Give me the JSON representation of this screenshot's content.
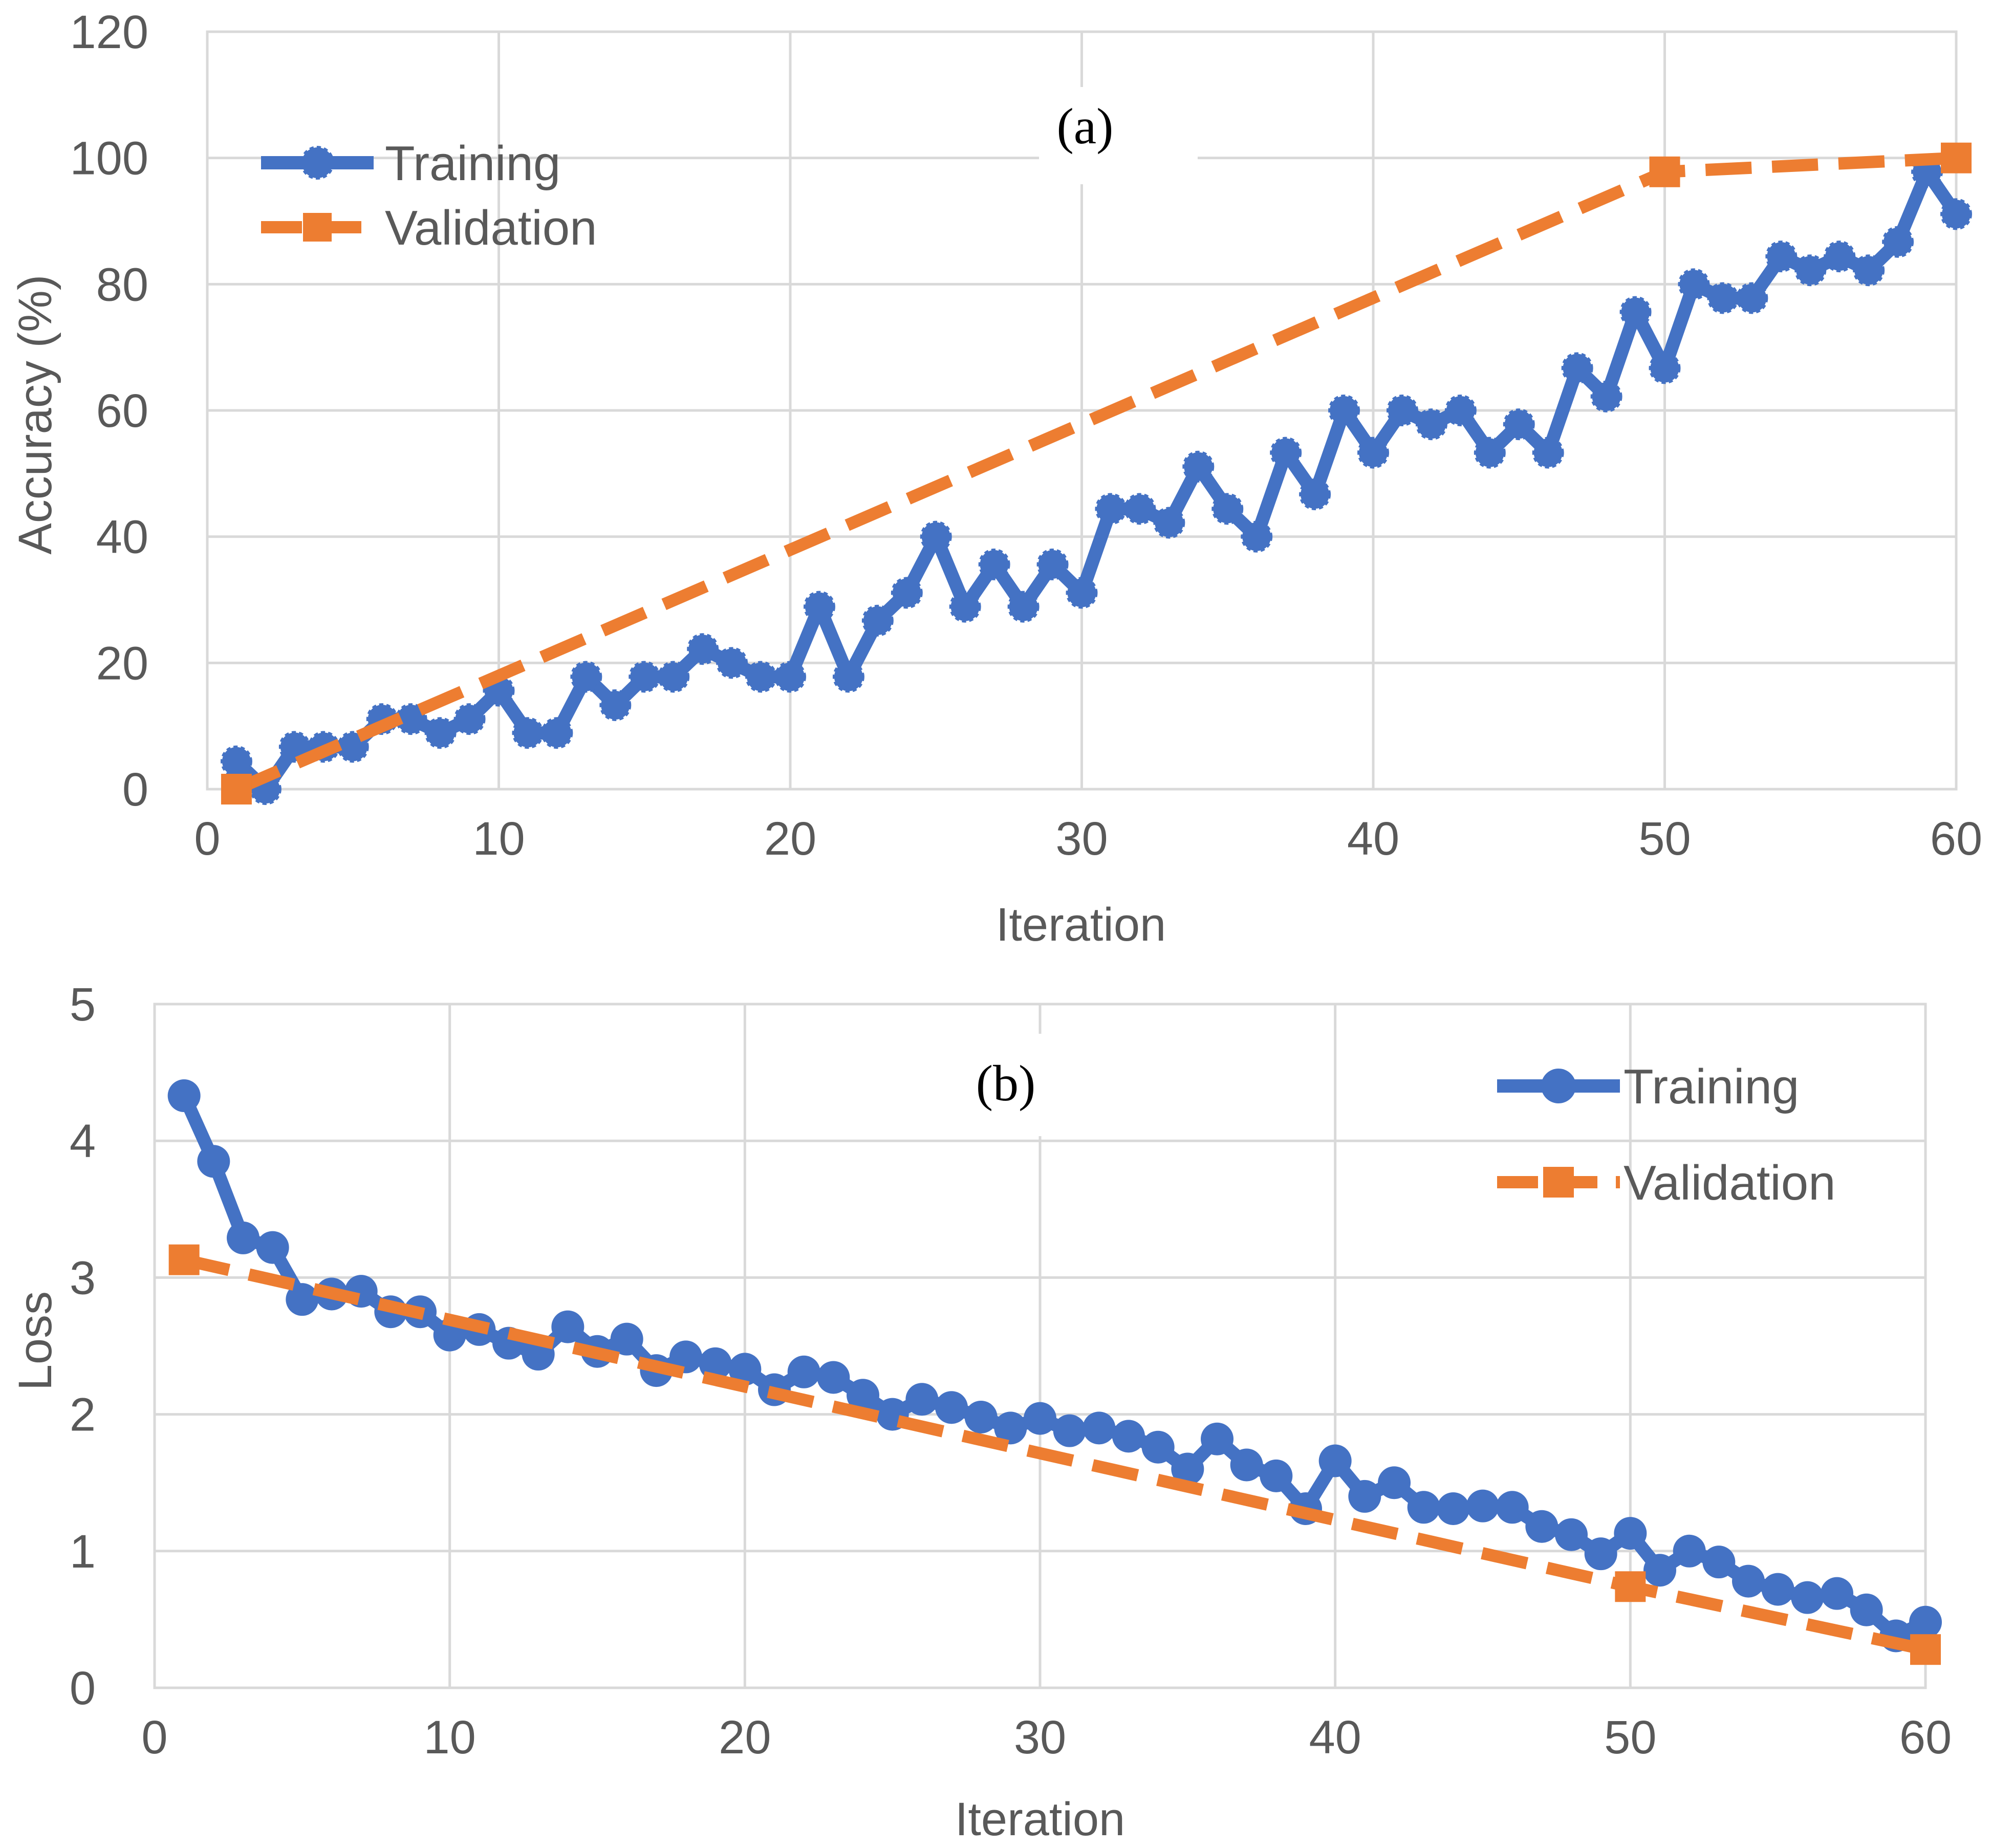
{
  "colors": {
    "training": "#4472C4",
    "validation": "#ED7D31",
    "grid": "#D9D9D9",
    "text": "#595959"
  },
  "chart_data": [
    {
      "type": "line",
      "panel_label": "(a)",
      "title": "",
      "xlabel": "Iteration",
      "ylabel": "Accuracy (%)",
      "xlim": [
        0,
        60
      ],
      "ylim": [
        0,
        120
      ],
      "xticks": [
        "0",
        "10",
        "20",
        "30",
        "40",
        "50",
        "60"
      ],
      "yticks": [
        "0",
        "20",
        "40",
        "60",
        "80",
        "100",
        "120"
      ],
      "grid": true,
      "legend_position": "top-left",
      "series": [
        {
          "name": "Training",
          "style": "solid-line-circle-markers",
          "x": [
            1,
            2,
            3,
            4,
            5,
            6,
            7,
            8,
            9,
            10,
            11,
            12,
            13,
            14,
            15,
            16,
            17,
            18,
            19,
            20,
            21,
            22,
            23,
            24,
            25,
            26,
            27,
            28,
            29,
            30,
            31,
            32,
            33,
            34,
            35,
            36,
            37,
            38,
            39,
            40,
            41,
            42,
            43,
            44,
            45,
            46,
            47,
            48,
            49,
            50,
            51,
            52,
            53,
            54,
            55,
            56,
            57,
            58,
            59,
            60
          ],
          "y": [
            4.4,
            0,
            6.7,
            6.7,
            6.7,
            11.1,
            11.1,
            8.9,
            11.1,
            15.6,
            8.9,
            8.9,
            17.8,
            13.3,
            17.8,
            17.8,
            22.2,
            20,
            17.8,
            17.8,
            28.9,
            17.8,
            26.7,
            31.1,
            40,
            28.9,
            35.6,
            28.9,
            35.6,
            31.1,
            44.4,
            44.4,
            42.2,
            51.1,
            44.4,
            40,
            53.3,
            46.7,
            60,
            53.3,
            60,
            57.8,
            60,
            53.3,
            57.8,
            53.3,
            66.7,
            62.2,
            75.6,
            66.7,
            80,
            77.8,
            77.8,
            84.4,
            82.2,
            84.4,
            82.2,
            86.7,
            97.8,
            91.1
          ]
        },
        {
          "name": "Validation",
          "style": "dashed-line-square-markers",
          "x": [
            1,
            50,
            60
          ],
          "y": [
            0,
            97.8,
            100
          ]
        }
      ]
    },
    {
      "type": "line",
      "panel_label": "(b)",
      "title": "",
      "xlabel": "Iteration",
      "ylabel": "Loss",
      "xlim": [
        0,
        60
      ],
      "ylim": [
        0,
        5
      ],
      "xticks": [
        "0",
        "10",
        "20",
        "30",
        "40",
        "50",
        "60"
      ],
      "yticks": [
        "0",
        "1",
        "2",
        "3",
        "4",
        "5"
      ],
      "grid": true,
      "legend_position": "top-right",
      "series": [
        {
          "name": "Training",
          "style": "solid-line-circle-markers",
          "x": [
            1,
            2,
            3,
            4,
            5,
            6,
            7,
            8,
            9,
            10,
            11,
            12,
            13,
            14,
            15,
            16,
            17,
            18,
            19,
            20,
            21,
            22,
            23,
            24,
            25,
            26,
            27,
            28,
            29,
            30,
            31,
            32,
            33,
            34,
            35,
            36,
            37,
            38,
            39,
            40,
            41,
            42,
            43,
            44,
            45,
            46,
            47,
            48,
            49,
            50,
            51,
            52,
            53,
            54,
            55,
            56,
            57,
            58,
            59,
            60
          ],
          "y": [
            4.33,
            3.85,
            3.29,
            3.22,
            2.84,
            2.88,
            2.9,
            2.75,
            2.75,
            2.58,
            2.62,
            2.52,
            2.44,
            2.64,
            2.46,
            2.55,
            2.32,
            2.42,
            2.37,
            2.33,
            2.18,
            2.31,
            2.27,
            2.14,
            2.0,
            2.11,
            2.05,
            1.98,
            1.9,
            1.97,
            1.88,
            1.9,
            1.84,
            1.76,
            1.6,
            1.82,
            1.63,
            1.55,
            1.31,
            1.66,
            1.4,
            1.5,
            1.32,
            1.31,
            1.33,
            1.32,
            1.18,
            1.12,
            0.98,
            1.13,
            0.86,
            1.0,
            0.92,
            0.78,
            0.72,
            0.66,
            0.69,
            0.57,
            0.38,
            0.48
          ]
        },
        {
          "name": "Validation",
          "style": "dashed-line-square-markers",
          "x": [
            1,
            50,
            60
          ],
          "y": [
            3.13,
            0.74,
            0.28
          ]
        }
      ]
    }
  ]
}
